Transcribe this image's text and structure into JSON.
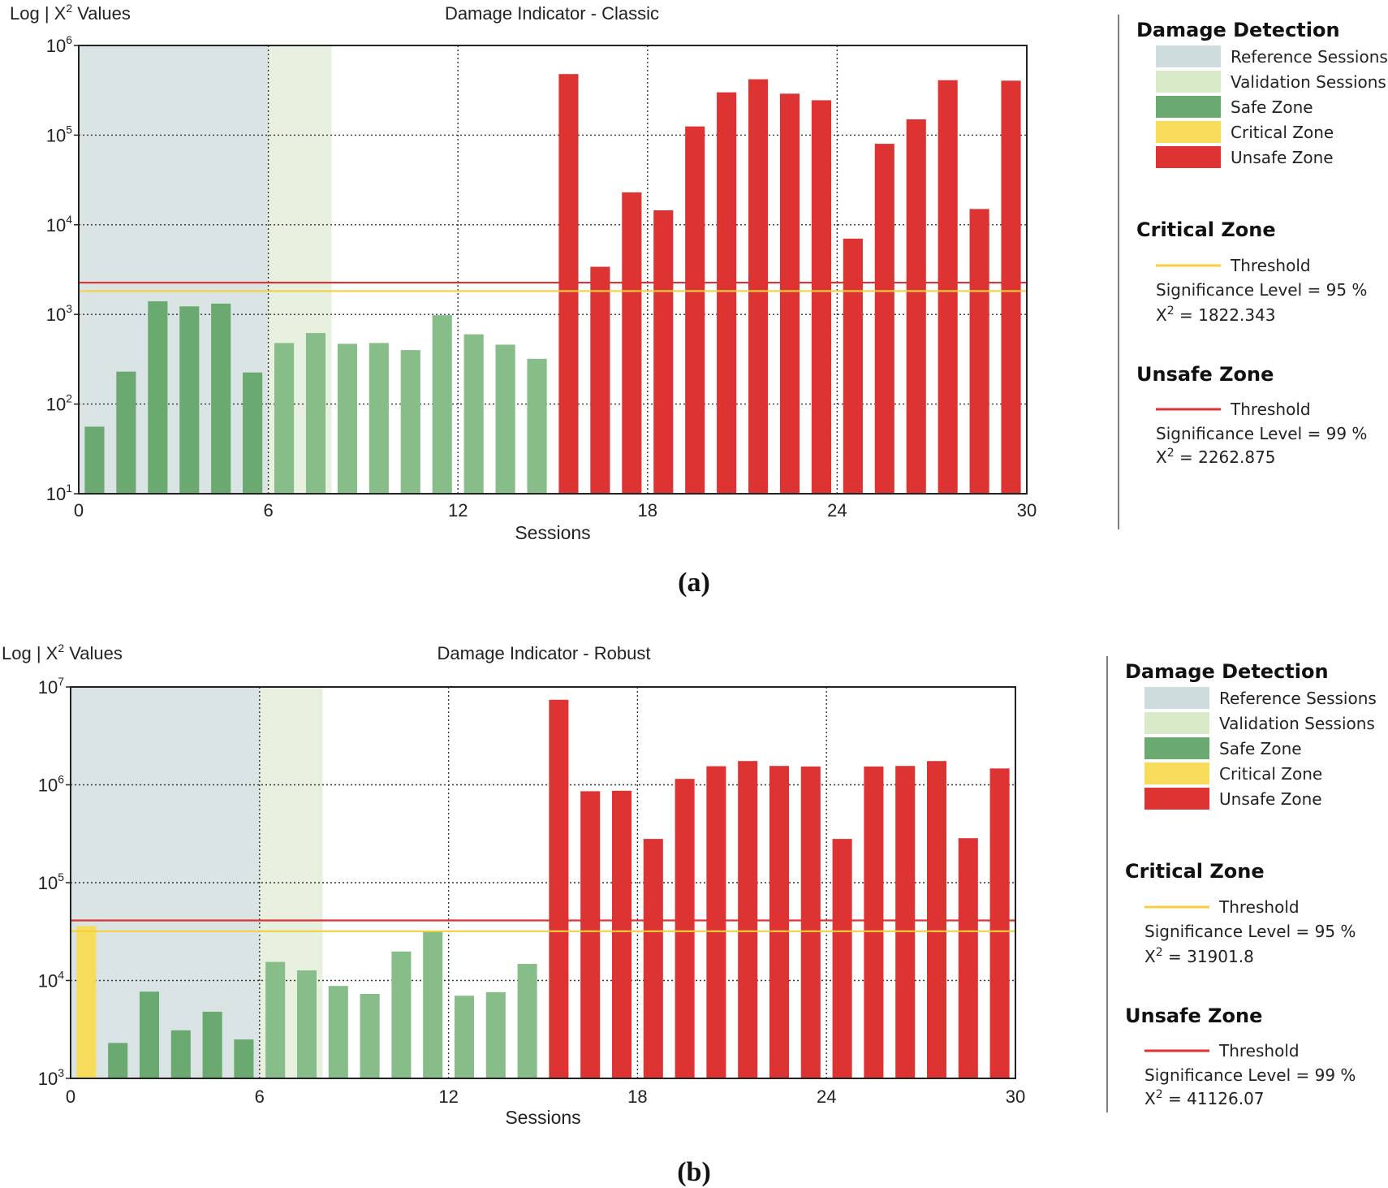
{
  "colors": {
    "reference": "#dae4e5",
    "validation": "#e8f1df",
    "safe_ref": "#6aa96f",
    "safe_val": "#86bd89",
    "critical": "#f6dc5a",
    "unsafe": "#dd3333",
    "critical_line": "#f4d03f",
    "unsafe_line": "#dd3333",
    "legend_reference": "#cfdcdd",
    "legend_validation": "#d8eac8",
    "legend_safe": "#6aa96f"
  },
  "chart_data": [
    {
      "type": "bar",
      "panel_label": "(a)",
      "title": "Damage Indicator - Classic",
      "ylabel_prefix": "Log | X",
      "ylabel_sup": "2",
      "ylabel_suffix": " Values",
      "xlabel": "Sessions",
      "yscale": "log",
      "ylim_exp": [
        1,
        6
      ],
      "ytick_exps": [
        "1",
        "2",
        "3",
        "4",
        "5",
        "6"
      ],
      "xlim": [
        0,
        30
      ],
      "xticks": [
        "0",
        "6",
        "12",
        "18",
        "24",
        "30"
      ],
      "reference_range": [
        0,
        6
      ],
      "validation_range": [
        6,
        8
      ],
      "critical_threshold": 1822.343,
      "unsafe_threshold": 2262.875,
      "sessions": [
        1,
        2,
        3,
        4,
        5,
        6,
        7,
        8,
        9,
        10,
        11,
        12,
        13,
        14,
        15,
        16,
        17,
        18,
        19,
        20,
        21,
        22,
        23,
        24,
        25,
        26,
        27,
        28,
        29,
        30
      ],
      "values": [
        56,
        230,
        1400,
        1230,
        1320,
        225,
        480,
        620,
        470,
        480,
        400,
        980,
        600,
        460,
        320,
        480000,
        3400,
        23000,
        14500,
        125000,
        300000,
        420000,
        290000,
        245000,
        7000,
        80000,
        150000,
        410000,
        15000,
        405000
      ],
      "zones": [
        "safe",
        "safe",
        "safe",
        "safe",
        "safe",
        "safe",
        "safe",
        "safe",
        "safe",
        "safe",
        "safe",
        "safe",
        "safe",
        "safe",
        "safe",
        "unsafe",
        "unsafe",
        "unsafe",
        "unsafe",
        "unsafe",
        "unsafe",
        "unsafe",
        "unsafe",
        "unsafe",
        "unsafe",
        "unsafe",
        "unsafe",
        "unsafe",
        "unsafe",
        "unsafe"
      ],
      "legend": {
        "heading_detection": "Damage Detection",
        "items": [
          "Reference Sessions",
          "Validation Sessions",
          "Safe Zone",
          "Critical Zone",
          "Unsafe Zone"
        ],
        "heading_critical": "Critical Zone",
        "critical_threshold_label": "Threshold",
        "critical_significance": "Significance Level = 95 %",
        "critical_x2_value": " = 1822.343",
        "heading_unsafe": "Unsafe Zone",
        "unsafe_threshold_label": "Threshold",
        "unsafe_significance": "Significance Level = 99 %",
        "unsafe_x2_value": " = 2262.875",
        "x_symbol": "X",
        "x_sup": "2"
      }
    },
    {
      "type": "bar",
      "panel_label": "(b)",
      "title": "Damage Indicator - Robust",
      "ylabel_prefix": "Log | X",
      "ylabel_sup": "2",
      "ylabel_suffix": " Values",
      "xlabel": "Sessions",
      "yscale": "log",
      "ylim_exp": [
        3,
        7
      ],
      "ytick_exps": [
        "3",
        "4",
        "5",
        "6",
        "7"
      ],
      "xlim": [
        0,
        30
      ],
      "xticks": [
        "0",
        "6",
        "12",
        "18",
        "24",
        "30"
      ],
      "reference_range": [
        0,
        6
      ],
      "validation_range": [
        6,
        8
      ],
      "critical_threshold": 31901.8,
      "unsafe_threshold": 41126.07,
      "sessions": [
        1,
        2,
        3,
        4,
        5,
        6,
        7,
        8,
        9,
        10,
        11,
        12,
        13,
        14,
        15,
        16,
        17,
        18,
        19,
        20,
        21,
        22,
        23,
        24,
        25,
        26,
        27,
        28,
        29,
        30
      ],
      "values": [
        36000,
        2300,
        7700,
        3100,
        4800,
        2500,
        15500,
        12700,
        8800,
        7300,
        19800,
        32000,
        7000,
        7600,
        14800,
        7400000,
        860000,
        870000,
        280000,
        1150000,
        1550000,
        1750000,
        1560000,
        1540000,
        280000,
        1540000,
        1560000,
        1750000,
        285000,
        1470000
      ],
      "zones": [
        "critical",
        "safe",
        "safe",
        "safe",
        "safe",
        "safe",
        "safe",
        "safe",
        "safe",
        "safe",
        "safe",
        "safe",
        "safe",
        "safe",
        "safe",
        "unsafe",
        "unsafe",
        "unsafe",
        "unsafe",
        "unsafe",
        "unsafe",
        "unsafe",
        "unsafe",
        "unsafe",
        "unsafe",
        "unsafe",
        "unsafe",
        "unsafe",
        "unsafe",
        "unsafe"
      ],
      "legend": {
        "heading_detection": "Damage Detection",
        "items": [
          "Reference Sessions",
          "Validation Sessions",
          "Safe Zone",
          "Critical Zone",
          "Unsafe Zone"
        ],
        "heading_critical": "Critical Zone",
        "critical_threshold_label": "Threshold",
        "critical_significance": "Significance Level = 95 %",
        "critical_x2_value": " = 31901.8",
        "heading_unsafe": "Unsafe Zone",
        "unsafe_threshold_label": "Threshold",
        "unsafe_significance": "Significance Level = 99 %",
        "unsafe_x2_value": " = 41126.07",
        "x_symbol": "X",
        "x_sup": "2"
      }
    }
  ]
}
